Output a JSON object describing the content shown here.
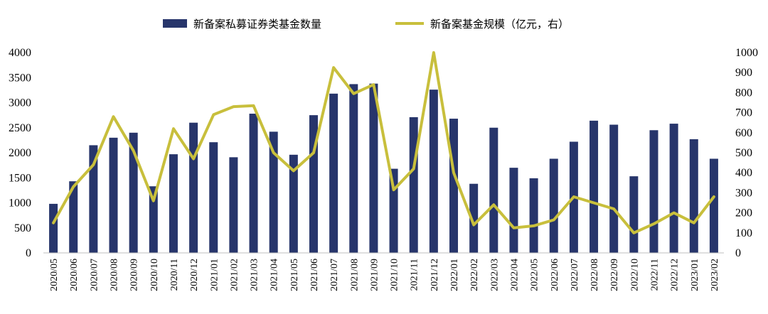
{
  "chart_data": {
    "type": "bar+line",
    "title": "",
    "categories": [
      "2020/05",
      "2020/06",
      "2020/07",
      "2020/08",
      "2020/09",
      "2020/10",
      "2020/11",
      "2020/12",
      "2021/01",
      "2021/02",
      "2021/03",
      "2021/04",
      "2021/05",
      "2021/06",
      "2021/07",
      "2021/08",
      "2021/09",
      "2021/10",
      "2021/11",
      "2021/12",
      "2022/01",
      "2022/02",
      "2022/03",
      "2022/04",
      "2022/05",
      "2022/06",
      "2022/07",
      "2022/08",
      "2022/09",
      "2022/10",
      "2022/11",
      "2022/12",
      "2023/01",
      "2023/02"
    ],
    "series": [
      {
        "name": "新备案私募证券类基金数量",
        "type": "bar",
        "axis": "left",
        "color": "#27356b",
        "values": [
          980,
          1430,
          2150,
          2300,
          2400,
          1330,
          1970,
          2600,
          2210,
          1910,
          2780,
          2420,
          1960,
          2750,
          3180,
          3370,
          3380,
          1680,
          2710,
          3260,
          2680,
          1380,
          2500,
          1700,
          1490,
          1880,
          2220,
          2640,
          2560,
          1530,
          2450,
          2580,
          2270,
          1880
        ]
      },
      {
        "name": "新备案基金规模（亿元，右）",
        "type": "line",
        "axis": "right",
        "color": "#c8bf3c",
        "values": [
          150,
          330,
          440,
          680,
          510,
          260,
          620,
          470,
          690,
          730,
          735,
          500,
          410,
          500,
          925,
          795,
          840,
          315,
          420,
          1000,
          400,
          140,
          240,
          125,
          135,
          165,
          280,
          250,
          220,
          100,
          145,
          200,
          150,
          280
        ]
      }
    ],
    "y_left": {
      "min": 0,
      "max": 4000,
      "ticks": [
        0,
        500,
        1000,
        1500,
        2000,
        2500,
        3000,
        3500,
        4000
      ]
    },
    "y_right": {
      "min": 0,
      "max": 1000,
      "ticks": [
        0,
        100,
        200,
        300,
        400,
        500,
        600,
        700,
        800,
        900,
        1000
      ]
    },
    "grid": false,
    "legend_position": "top"
  }
}
